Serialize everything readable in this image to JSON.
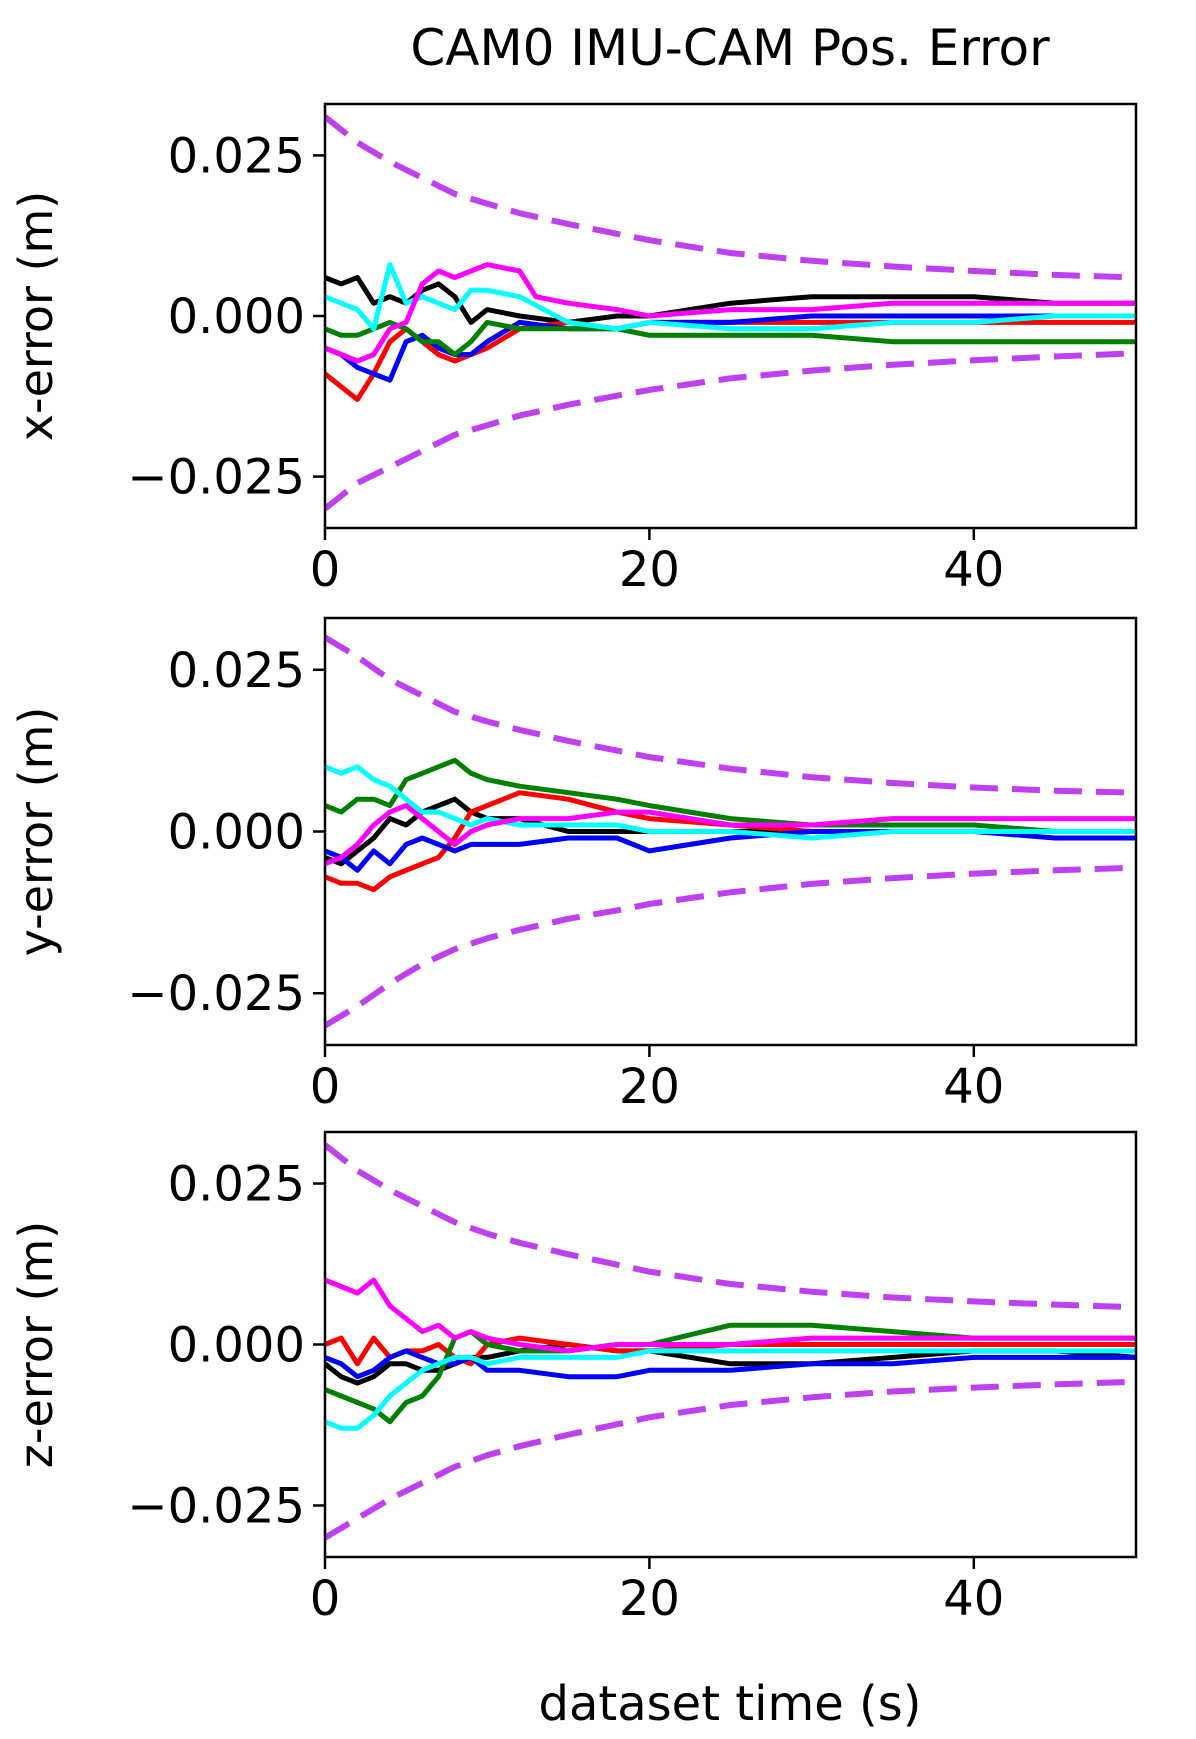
{
  "title": "CAM0 IMU-CAM Pos.  Error",
  "xlabel": "dataset time (s)",
  "colors": {
    "black": "#000000",
    "red": "#ff0000",
    "blue": "#0000ff",
    "green": "#008000",
    "cyan": "#00ffff",
    "magenta": "#ff00ff",
    "bound": "#bf40f0"
  },
  "chart_data": [
    {
      "type": "line",
      "ylabel": "x-error (m)",
      "xlim": [
        0,
        50
      ],
      "ylim": [
        -0.033,
        0.033
      ],
      "xticks": [
        0,
        20,
        40
      ],
      "xtick_labels": [
        "0",
        "20",
        "40"
      ],
      "yticks": [
        0.025,
        0.0,
        -0.025
      ],
      "ytick_labels": [
        "0.025",
        "0.000",
        "−0.025"
      ],
      "grid": false,
      "bounds": {
        "style": "dashed",
        "color": "magenta",
        "x": [
          0,
          2,
          4,
          6,
          8,
          10,
          12,
          15,
          18,
          20,
          25,
          30,
          35,
          40,
          45,
          50
        ],
        "upper": [
          0.031,
          0.027,
          0.024,
          0.0215,
          0.019,
          0.0175,
          0.016,
          0.0143,
          0.0128,
          0.0118,
          0.0098,
          0.0086,
          0.0077,
          0.007,
          0.0064,
          0.006
        ],
        "lower": [
          -0.03,
          -0.026,
          -0.0235,
          -0.021,
          -0.0185,
          -0.017,
          -0.0155,
          -0.0138,
          -0.0124,
          -0.0115,
          -0.0097,
          -0.0085,
          -0.0076,
          -0.0069,
          -0.0063,
          -0.0058
        ]
      },
      "series": [
        {
          "color": "black",
          "x": [
            0,
            1,
            2,
            3,
            4,
            5,
            6,
            7,
            8,
            9,
            10,
            12,
            15,
            18,
            20,
            25,
            30,
            35,
            40,
            45,
            50
          ],
          "y": [
            0.006,
            0.005,
            0.006,
            0.002,
            0.003,
            0.002,
            0.004,
            0.005,
            0.003,
            -0.001,
            0.001,
            0.0,
            -0.001,
            0.0,
            0.0,
            0.002,
            0.003,
            0.003,
            0.003,
            0.002,
            0.002
          ]
        },
        {
          "color": "red",
          "x": [
            0,
            1,
            2,
            3,
            4,
            5,
            6,
            7,
            8,
            9,
            10,
            12,
            15,
            18,
            20,
            25,
            30,
            35,
            40,
            45,
            50
          ],
          "y": [
            -0.009,
            -0.011,
            -0.013,
            -0.009,
            -0.004,
            -0.002,
            -0.004,
            -0.006,
            -0.007,
            -0.006,
            -0.005,
            -0.002,
            -0.001,
            -0.002,
            -0.001,
            -0.001,
            -0.001,
            -0.001,
            -0.001,
            -0.001,
            -0.001
          ]
        },
        {
          "color": "blue",
          "x": [
            0,
            1,
            2,
            3,
            4,
            5,
            6,
            7,
            8,
            9,
            10,
            12,
            15,
            18,
            20,
            25,
            30,
            35,
            40,
            45,
            50
          ],
          "y": [
            -0.005,
            -0.006,
            -0.008,
            -0.009,
            -0.01,
            -0.004,
            -0.003,
            -0.005,
            -0.006,
            -0.006,
            -0.004,
            -0.001,
            -0.002,
            -0.002,
            -0.001,
            -0.001,
            0.0,
            0.0,
            0.0,
            0.0,
            0.0
          ]
        },
        {
          "color": "green",
          "x": [
            0,
            1,
            2,
            3,
            4,
            5,
            6,
            7,
            8,
            9,
            10,
            12,
            15,
            18,
            20,
            25,
            30,
            35,
            40,
            45,
            50
          ],
          "y": [
            -0.002,
            -0.003,
            -0.003,
            -0.002,
            -0.001,
            -0.002,
            -0.004,
            -0.004,
            -0.006,
            -0.004,
            -0.001,
            -0.002,
            -0.002,
            -0.002,
            -0.003,
            -0.003,
            -0.003,
            -0.004,
            -0.004,
            -0.004,
            -0.004
          ]
        },
        {
          "color": "cyan",
          "x": [
            0,
            1,
            2,
            3,
            4,
            5,
            6,
            7,
            8,
            9,
            10,
            12,
            15,
            18,
            20,
            25,
            30,
            35,
            40,
            45,
            50
          ],
          "y": [
            0.003,
            0.002,
            0.001,
            -0.002,
            0.008,
            0.002,
            0.003,
            0.002,
            0.001,
            0.004,
            0.004,
            0.003,
            -0.001,
            -0.002,
            -0.001,
            -0.002,
            -0.002,
            -0.001,
            -0.001,
            0.0,
            0.0
          ]
        },
        {
          "color": "magenta",
          "x": [
            0,
            1,
            2,
            3,
            4,
            5,
            6,
            7,
            8,
            9,
            10,
            12,
            13,
            15,
            18,
            20,
            25,
            30,
            35,
            40,
            45,
            50
          ],
          "y": [
            -0.005,
            -0.006,
            -0.007,
            -0.006,
            -0.002,
            -0.001,
            0.005,
            0.007,
            0.006,
            0.007,
            0.008,
            0.007,
            0.003,
            0.002,
            0.001,
            0.0,
            0.001,
            0.001,
            0.002,
            0.002,
            0.002,
            0.002
          ]
        }
      ]
    },
    {
      "type": "line",
      "ylabel": "y-error (m)",
      "xlim": [
        0,
        50
      ],
      "ylim": [
        -0.033,
        0.033
      ],
      "xticks": [
        0,
        20,
        40
      ],
      "xtick_labels": [
        "0",
        "20",
        "40"
      ],
      "yticks": [
        0.025,
        0.0,
        -0.025
      ],
      "ytick_labels": [
        "0.025",
        "0.000",
        "−0.025"
      ],
      "grid": false,
      "bounds": {
        "style": "dashed",
        "color": "magenta",
        "x": [
          0,
          2,
          4,
          6,
          8,
          10,
          12,
          15,
          18,
          20,
          25,
          30,
          35,
          40,
          45,
          50
        ],
        "upper": [
          0.03,
          0.027,
          0.0235,
          0.021,
          0.0185,
          0.017,
          0.0157,
          0.014,
          0.0125,
          0.0115,
          0.0097,
          0.0084,
          0.0075,
          0.0068,
          0.0063,
          0.006
        ],
        "lower": [
          -0.03,
          -0.027,
          -0.0235,
          -0.0205,
          -0.0182,
          -0.0165,
          -0.0152,
          -0.0135,
          -0.0122,
          -0.0112,
          -0.0094,
          -0.0081,
          -0.0072,
          -0.0065,
          -0.006,
          -0.0056
        ]
      },
      "series": [
        {
          "color": "black",
          "x": [
            0,
            1,
            2,
            3,
            4,
            5,
            6,
            7,
            8,
            9,
            10,
            12,
            15,
            18,
            20,
            25,
            30,
            35,
            40,
            45,
            50
          ],
          "y": [
            -0.004,
            -0.005,
            -0.003,
            -0.001,
            0.002,
            0.001,
            0.003,
            0.004,
            0.005,
            0.003,
            0.002,
            0.002,
            0.0,
            0.0,
            0.0,
            0.0,
            0.0,
            0.0,
            0.0,
            0.0,
            0.0
          ]
        },
        {
          "color": "red",
          "x": [
            0,
            1,
            2,
            3,
            4,
            5,
            6,
            7,
            8,
            9,
            10,
            12,
            15,
            18,
            20,
            25,
            30,
            35,
            40,
            45,
            50
          ],
          "y": [
            -0.007,
            -0.008,
            -0.008,
            -0.009,
            -0.007,
            -0.006,
            -0.005,
            -0.004,
            -0.001,
            0.003,
            0.004,
            0.006,
            0.005,
            0.003,
            0.002,
            0.001,
            0.0,
            0.0,
            0.0,
            0.0,
            0.0
          ]
        },
        {
          "color": "blue",
          "x": [
            0,
            1,
            2,
            3,
            4,
            5,
            6,
            7,
            8,
            9,
            10,
            12,
            15,
            18,
            20,
            25,
            30,
            35,
            40,
            45,
            50
          ],
          "y": [
            -0.003,
            -0.004,
            -0.006,
            -0.003,
            -0.005,
            -0.002,
            -0.001,
            -0.002,
            -0.003,
            -0.002,
            -0.002,
            -0.002,
            -0.001,
            -0.001,
            -0.003,
            -0.001,
            0.0,
            0.0,
            0.0,
            -0.001,
            -0.001
          ]
        },
        {
          "color": "green",
          "x": [
            0,
            1,
            2,
            3,
            4,
            5,
            6,
            7,
            8,
            9,
            10,
            12,
            15,
            18,
            20,
            25,
            30,
            35,
            40,
            45,
            50
          ],
          "y": [
            0.004,
            0.003,
            0.005,
            0.005,
            0.004,
            0.008,
            0.009,
            0.01,
            0.011,
            0.009,
            0.008,
            0.007,
            0.006,
            0.005,
            0.004,
            0.002,
            0.001,
            0.001,
            0.001,
            0.0,
            0.0
          ]
        },
        {
          "color": "cyan",
          "x": [
            0,
            1,
            2,
            3,
            4,
            5,
            6,
            7,
            8,
            9,
            10,
            12,
            15,
            18,
            20,
            25,
            30,
            35,
            40,
            45,
            50
          ],
          "y": [
            0.01,
            0.009,
            0.01,
            0.008,
            0.007,
            0.005,
            0.003,
            0.003,
            0.002,
            0.001,
            0.002,
            0.001,
            0.001,
            0.001,
            0.0,
            0.0,
            -0.001,
            0.0,
            0.0,
            0.0,
            0.0
          ]
        },
        {
          "color": "magenta",
          "x": [
            0,
            1,
            2,
            3,
            4,
            5,
            6,
            7,
            8,
            9,
            10,
            12,
            15,
            18,
            20,
            25,
            30,
            35,
            40,
            45,
            50
          ],
          "y": [
            -0.005,
            -0.004,
            -0.002,
            0.001,
            0.003,
            0.004,
            0.002,
            0.0,
            -0.002,
            0.0,
            0.001,
            0.002,
            0.002,
            0.003,
            0.003,
            0.001,
            0.001,
            0.002,
            0.002,
            0.002,
            0.002
          ]
        }
      ]
    },
    {
      "type": "line",
      "ylabel": "z-error (m)",
      "xlabel": "dataset time (s)",
      "xlim": [
        0,
        50
      ],
      "ylim": [
        -0.033,
        0.033
      ],
      "xticks": [
        0,
        20,
        40
      ],
      "xtick_labels": [
        "0",
        "20",
        "40"
      ],
      "yticks": [
        0.025,
        0.0,
        -0.025
      ],
      "ytick_labels": [
        "0.025",
        "0.000",
        "−0.025"
      ],
      "grid": false,
      "bounds": {
        "style": "dashed",
        "color": "magenta",
        "x": [
          0,
          2,
          4,
          6,
          8,
          10,
          12,
          15,
          18,
          20,
          25,
          30,
          35,
          40,
          45,
          50
        ],
        "upper": [
          0.031,
          0.027,
          0.024,
          0.0215,
          0.019,
          0.0172,
          0.0158,
          0.014,
          0.0124,
          0.0113,
          0.0094,
          0.0082,
          0.0073,
          0.0067,
          0.0062,
          0.0058
        ],
        "lower": [
          -0.03,
          -0.027,
          -0.024,
          -0.0215,
          -0.019,
          -0.0172,
          -0.0158,
          -0.014,
          -0.0124,
          -0.0113,
          -0.0094,
          -0.0082,
          -0.0073,
          -0.0067,
          -0.0062,
          -0.0058
        ]
      },
      "series": [
        {
          "color": "black",
          "x": [
            0,
            1,
            2,
            3,
            4,
            5,
            6,
            7,
            8,
            9,
            10,
            12,
            15,
            18,
            20,
            25,
            30,
            35,
            40,
            45,
            50
          ],
          "y": [
            -0.003,
            -0.005,
            -0.006,
            -0.005,
            -0.003,
            -0.003,
            -0.004,
            -0.004,
            -0.003,
            -0.002,
            -0.002,
            -0.001,
            0.0,
            -0.001,
            -0.001,
            -0.003,
            -0.003,
            -0.002,
            -0.001,
            -0.001,
            -0.002
          ]
        },
        {
          "color": "red",
          "x": [
            0,
            1,
            2,
            3,
            4,
            5,
            6,
            7,
            8,
            9,
            10,
            12,
            15,
            18,
            20,
            25,
            30,
            35,
            40,
            45,
            50
          ],
          "y": [
            0.0,
            0.001,
            -0.003,
            0.001,
            -0.002,
            -0.001,
            -0.001,
            0.0,
            -0.002,
            -0.003,
            0.0,
            0.001,
            0.0,
            -0.001,
            -0.001,
            0.0,
            0.0,
            0.0,
            0.0,
            0.0,
            0.0
          ]
        },
        {
          "color": "blue",
          "x": [
            0,
            1,
            2,
            3,
            4,
            5,
            6,
            7,
            8,
            9,
            10,
            12,
            15,
            18,
            20,
            25,
            30,
            35,
            40,
            45,
            50
          ],
          "y": [
            -0.002,
            -0.003,
            -0.005,
            -0.004,
            -0.002,
            -0.001,
            -0.002,
            -0.003,
            -0.003,
            -0.002,
            -0.004,
            -0.004,
            -0.005,
            -0.005,
            -0.004,
            -0.004,
            -0.003,
            -0.003,
            -0.002,
            -0.002,
            -0.002
          ]
        },
        {
          "color": "green",
          "x": [
            0,
            1,
            2,
            3,
            4,
            5,
            6,
            7,
            8,
            9,
            10,
            12,
            15,
            18,
            20,
            25,
            30,
            35,
            40,
            45,
            50
          ],
          "y": [
            -0.007,
            -0.008,
            -0.009,
            -0.01,
            -0.012,
            -0.009,
            -0.008,
            -0.005,
            0.001,
            0.002,
            0.0,
            -0.001,
            -0.001,
            0.0,
            0.0,
            0.003,
            0.003,
            0.002,
            0.001,
            0.001,
            0.001
          ]
        },
        {
          "color": "cyan",
          "x": [
            0,
            1,
            2,
            3,
            4,
            5,
            6,
            7,
            8,
            9,
            10,
            12,
            15,
            18,
            20,
            25,
            30,
            35,
            40,
            45,
            50
          ],
          "y": [
            -0.012,
            -0.013,
            -0.013,
            -0.011,
            -0.008,
            -0.006,
            -0.004,
            -0.003,
            -0.002,
            -0.002,
            -0.003,
            -0.002,
            -0.002,
            -0.002,
            -0.001,
            -0.001,
            -0.001,
            -0.001,
            -0.001,
            -0.001,
            -0.001
          ]
        },
        {
          "color": "magenta",
          "x": [
            0,
            1,
            2,
            3,
            4,
            5,
            6,
            7,
            8,
            9,
            10,
            12,
            15,
            18,
            20,
            25,
            30,
            35,
            40,
            45,
            50
          ],
          "y": [
            0.01,
            0.009,
            0.008,
            0.01,
            0.006,
            0.004,
            0.002,
            0.003,
            0.001,
            0.002,
            0.001,
            0.0,
            -0.001,
            0.0,
            0.0,
            0.0,
            0.001,
            0.001,
            0.001,
            0.001,
            0.001
          ]
        }
      ]
    }
  ]
}
